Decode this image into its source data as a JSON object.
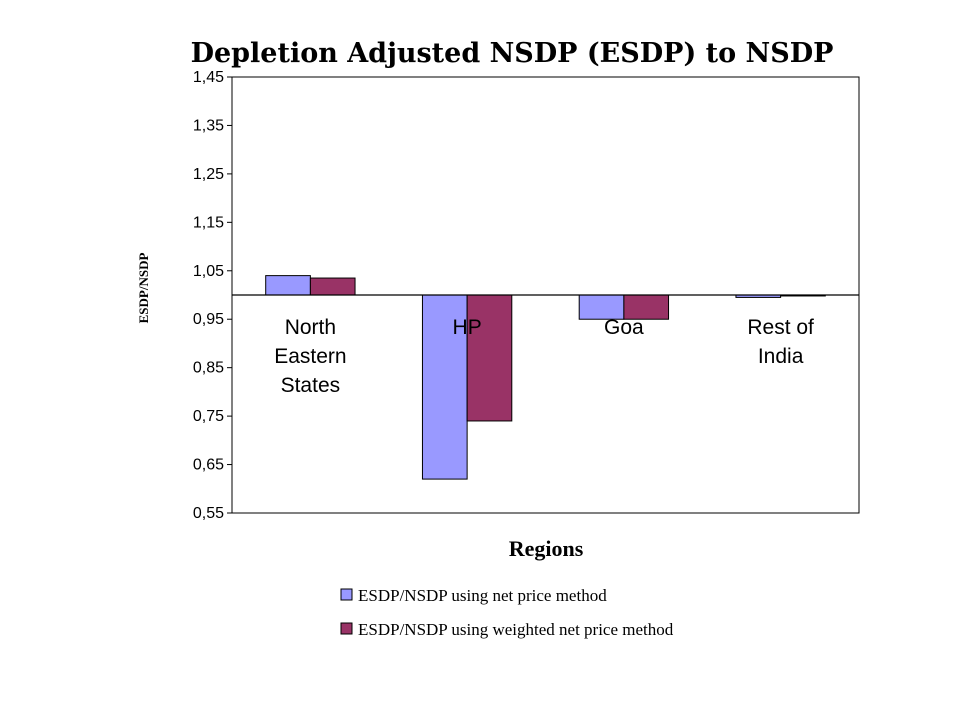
{
  "chart_data": {
    "type": "bar",
    "title": "Depletion Adjusted NSDP (ESDP) to NSDP",
    "xlabel": "Regions",
    "ylabel": "ESDP/NSDP",
    "categories": [
      [
        "North",
        "Eastern",
        "States"
      ],
      [
        "HP"
      ],
      [
        "Goa"
      ],
      [
        "Rest of",
        "India"
      ]
    ],
    "series": [
      {
        "name": "ESDP/NSDP using net price method",
        "color": "#9999ff",
        "values": [
          1.04,
          0.62,
          0.95,
          0.995
        ]
      },
      {
        "name": "ESDP/NSDP using weighted net price method",
        "color": "#993366",
        "values": [
          1.035,
          0.74,
          0.95,
          0.998
        ]
      }
    ],
    "baseline": 1.0,
    "ylim": [
      0.55,
      1.45
    ],
    "yticks": [
      "1,45",
      "1,35",
      "1,25",
      "1,15",
      "1,05",
      "0,95",
      "0,85",
      "0,75",
      "0,65",
      "0,55"
    ],
    "grid": false,
    "legend_position": "bottom"
  }
}
